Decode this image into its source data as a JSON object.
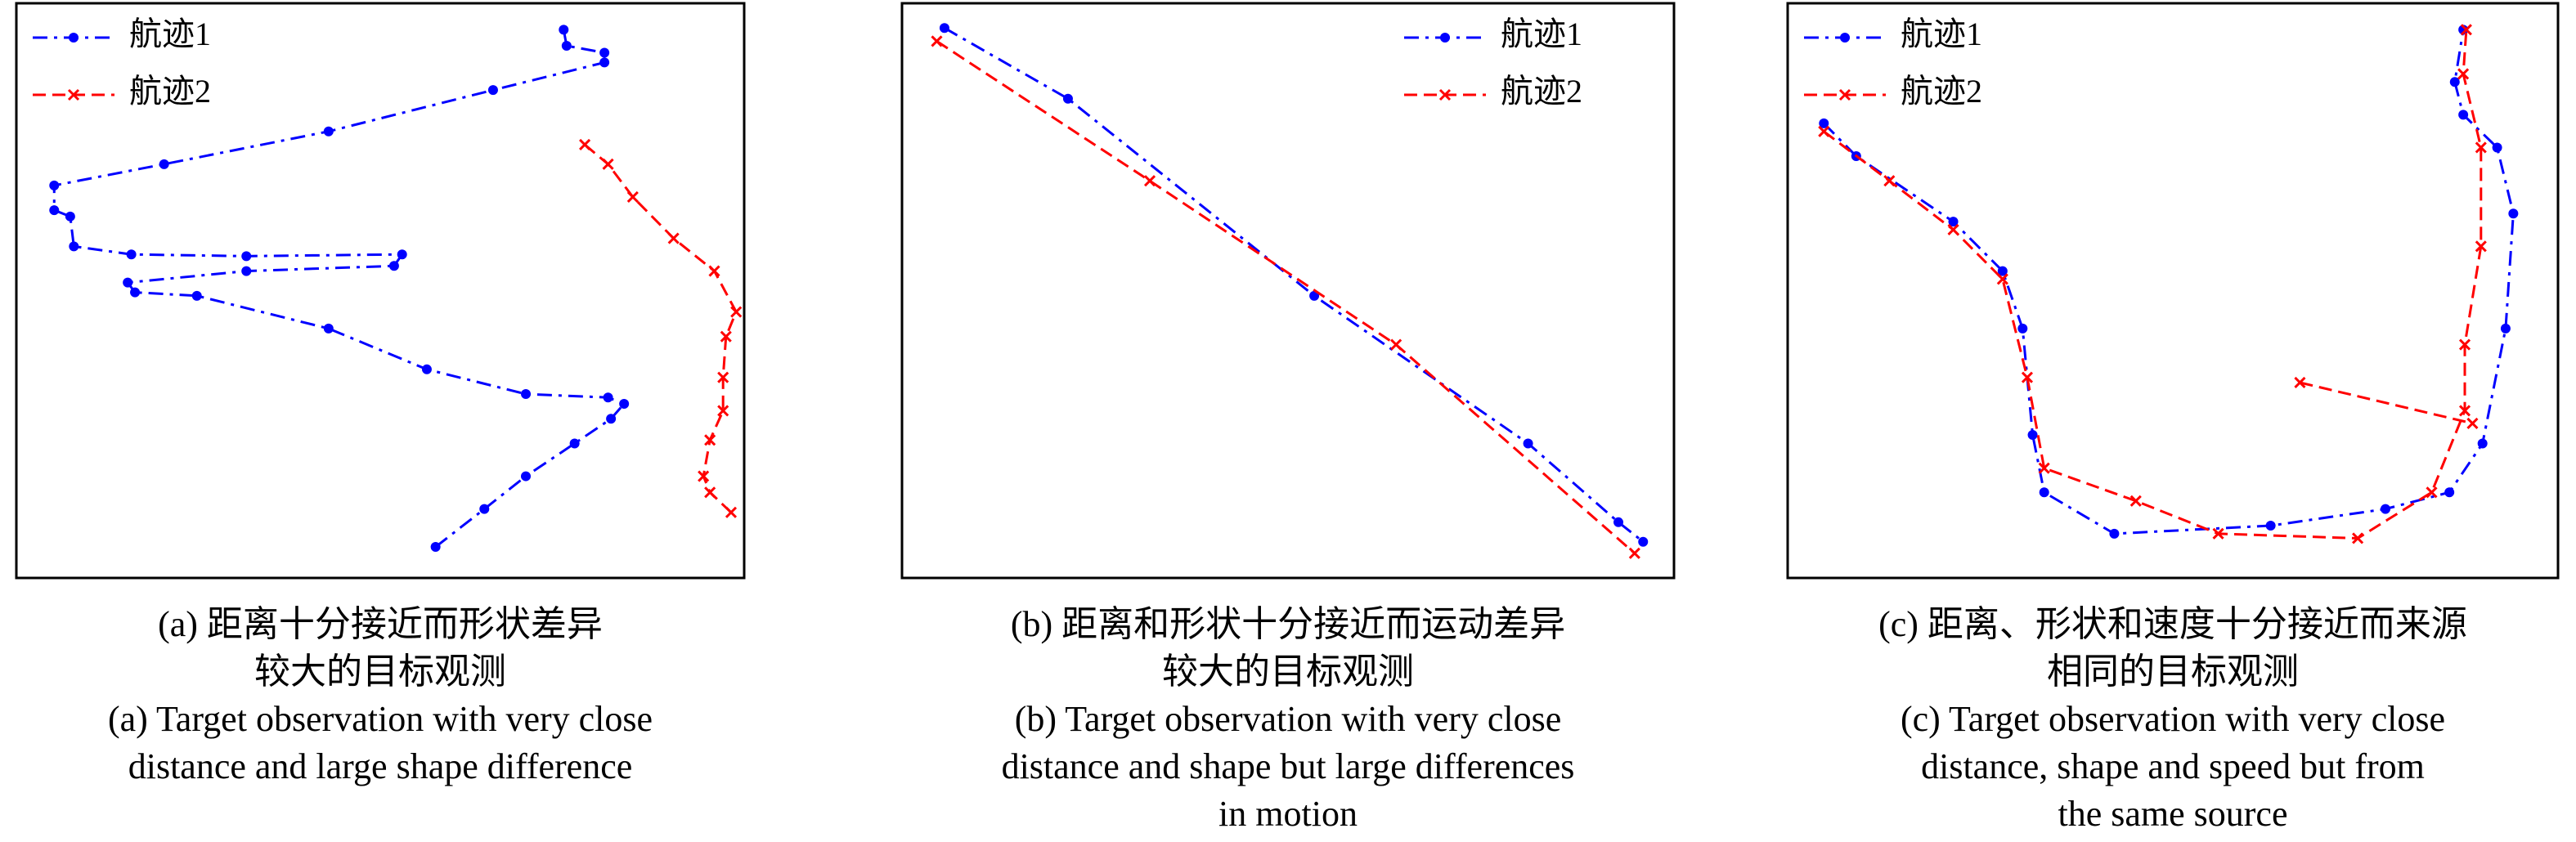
{
  "chart_data": [
    {
      "type": "line",
      "legend": "upper left",
      "xlim": [
        0,
        100
      ],
      "ylim": [
        0,
        100
      ],
      "caption": [
        "(a) 距离十分接近而形状差异",
        "较大的目标观测",
        "(a) Target observation with very close",
        "distance and large shape difference"
      ],
      "series": [
        {
          "name": "航迹1",
          "color": "#0000ff",
          "marker": "dot",
          "line_style": "dashdot",
          "x": [
            75.2,
            75.6,
            80.8,
            80.8,
            65.5,
            42.9,
            20.3,
            5.2,
            5.2,
            7.4,
            7.9,
            15.8,
            31.6,
            53.0,
            51.9,
            31.6,
            15.3,
            16.3,
            24.8,
            42.9,
            56.4,
            70.0,
            81.3,
            83.5,
            81.7,
            76.7,
            70.0,
            64.3,
            57.6
          ],
          "values": [
            95.4,
            92.6,
            91.4,
            89.7,
            84.9,
            77.7,
            72.0,
            68.3,
            64.0,
            62.9,
            57.7,
            56.3,
            56.0,
            56.3,
            54.3,
            53.4,
            51.4,
            49.7,
            49.1,
            43.4,
            36.3,
            32.0,
            31.4,
            30.3,
            27.7,
            23.4,
            17.7,
            12.0,
            5.4
          ]
        },
        {
          "name": "航迹2",
          "color": "#ff0000",
          "marker": "x",
          "line_style": "dashed",
          "x": [
            78.1,
            81.3,
            84.7,
            90.3,
            95.9,
            98.9,
            97.5,
            97.1,
            97.1,
            95.3,
            94.4,
            95.3,
            98.2
          ],
          "values": [
            75.4,
            72.0,
            66.3,
            59.1,
            53.4,
            46.3,
            42.0,
            34.9,
            29.1,
            24.0,
            17.7,
            14.9,
            11.4
          ]
        }
      ]
    },
    {
      "type": "line",
      "legend": "upper right",
      "xlim": [
        0,
        100
      ],
      "ylim": [
        0,
        100
      ],
      "caption": [
        "(b) 距离和形状十分接近而运动差异",
        "较大的目标观测",
        "(b) Target observation with very close",
        "distance and shape but large differences",
        "in motion"
      ],
      "series": [
        {
          "name": "航迹1",
          "color": "#0000ff",
          "marker": "dot",
          "line_style": "dashdot",
          "x": [
            5.5,
            21.5,
            53.4,
            81.1,
            92.8,
            96.0
          ],
          "values": [
            95.7,
            83.4,
            49.1,
            23.4,
            9.7,
            6.3
          ]
        },
        {
          "name": "航迹2",
          "color": "#ff0000",
          "marker": "x",
          "line_style": "dashed",
          "x": [
            4.5,
            32.1,
            64.0,
            94.9
          ],
          "values": [
            93.4,
            69.1,
            40.6,
            4.3
          ]
        }
      ]
    },
    {
      "type": "line",
      "legend": "upper left",
      "xlim": [
        0,
        100
      ],
      "ylim": [
        0,
        100
      ],
      "caption": [
        "(c) 距离、形状和速度十分接近而来源",
        "相同的目标观测",
        "(c) Target observation with very close",
        "distance, shape and speed but from",
        "the same source"
      ],
      "series": [
        {
          "name": "航迹1",
          "color": "#0000ff",
          "marker": "dot",
          "line_style": "dashdot",
          "x": [
            4.7,
            8.9,
            21.5,
            27.9,
            30.5,
            31.8,
            33.3,
            42.4,
            62.7,
            77.6,
            85.9,
            90.2,
            93.2,
            94.2,
            92.1,
            87.7,
            86.6,
            87.7
          ],
          "values": [
            79.1,
            73.4,
            62.0,
            53.4,
            43.4,
            24.9,
            14.9,
            7.7,
            9.1,
            12.0,
            14.9,
            23.4,
            43.4,
            63.4,
            74.9,
            80.6,
            86.3,
            95.4
          ]
        },
        {
          "name": "航迹2",
          "color": "#ff0000",
          "marker": "x",
          "line_style": "dashed",
          "x": [
            4.7,
            13.2,
            21.5,
            27.9,
            31.1,
            33.3,
            45.2,
            55.9,
            74.0,
            83.6,
            87.9,
            87.9,
            90.0,
            90.0,
            87.7,
            88.1,
            null,
            66.5,
            88.9
          ],
          "values": [
            77.7,
            69.1,
            60.6,
            52.0,
            34.9,
            19.1,
            13.4,
            7.7,
            6.9,
            14.9,
            29.1,
            40.6,
            57.7,
            74.9,
            87.7,
            95.4,
            null,
            34.0,
            26.9
          ]
        }
      ]
    }
  ]
}
